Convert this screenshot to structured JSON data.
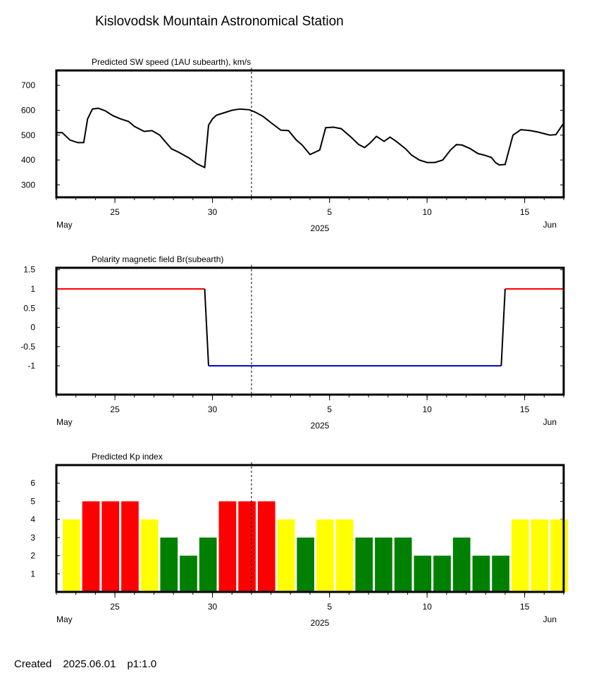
{
  "page": {
    "title": "Kislovodsk Mountain Astronomical Station",
    "created_label": "Created",
    "created_date": "2025.06.01",
    "page_code": "p1:1.0"
  },
  "shared_axis": {
    "start_date": "2025-05-22",
    "end_date": "2025-06-17",
    "tick_labels": [
      "25",
      "30",
      "5",
      "10",
      "15"
    ],
    "tick_dates": [
      "2025-05-25",
      "2025-05-30",
      "2025-06-05",
      "2025-06-10",
      "2025-06-15"
    ],
    "month_left": "May",
    "year": "2025",
    "month_right": "Jun",
    "current_date_marker": "2025-06-01"
  },
  "chart_data": [
    {
      "type": "line",
      "title": "Predicted SW speed (1AU subearth), km/s",
      "ylim": [
        250,
        760
      ],
      "yticks": [
        "700",
        "600",
        "500",
        "400",
        "300"
      ],
      "ytick_values": [
        700,
        600,
        500,
        400,
        300
      ],
      "color": "#000000",
      "x": [
        "2025-05-22",
        "2025-05-22.3",
        "2025-05-22.7",
        "2025-05-23.1",
        "2025-05-23.4",
        "2025-05-23.6",
        "2025-05-23.85",
        "2025-05-24.15",
        "2025-05-24.5",
        "2025-05-24.9",
        "2025-05-25.3",
        "2025-05-25.7",
        "2025-05-26.0",
        "2025-05-26.5",
        "2025-05-26.9",
        "2025-05-27.3",
        "2025-05-27.6",
        "2025-05-27.9",
        "2025-05-28.3",
        "2025-05-28.8",
        "2025-05-29.2",
        "2025-05-29.6",
        "2025-05-29.8",
        "2025-05-30.0",
        "2025-05-30.2",
        "2025-05-30.6",
        "2025-05-31.0",
        "2025-05-31.4",
        "2025-05-31.9",
        "2025-06-01.2",
        "2025-06-01.6",
        "2025-06-02.0",
        "2025-06-02.5",
        "2025-06-02.9",
        "2025-06-03.3",
        "2025-06-03.6",
        "2025-06-04.0",
        "2025-06-04.5",
        "2025-06-04.8",
        "2025-06-05.2",
        "2025-06-05.6",
        "2025-06-06.1",
        "2025-06-06.5",
        "2025-06-06.8",
        "2025-06-07.1",
        "2025-06-07.4",
        "2025-06-07.8",
        "2025-06-08.1",
        "2025-06-08.4",
        "2025-06-08.9",
        "2025-06-09.2",
        "2025-06-09.6",
        "2025-06-10.0",
        "2025-06-10.4",
        "2025-06-10.8",
        "2025-06-11.2",
        "2025-06-11.5",
        "2025-06-11.8",
        "2025-06-12.2",
        "2025-06-12.6",
        "2025-06-13.0",
        "2025-06-13.3",
        "2025-06-13.5",
        "2025-06-13.7",
        "2025-06-14.0",
        "2025-06-14.4",
        "2025-06-14.8",
        "2025-06-15.3",
        "2025-06-15.7",
        "2025-06-16.1",
        "2025-06-16.3",
        "2025-06-16.6",
        "2025-06-17.0"
      ],
      "values": [
        510,
        510,
        480,
        470,
        470,
        565,
        605,
        608,
        598,
        578,
        565,
        555,
        535,
        515,
        518,
        500,
        472,
        445,
        430,
        408,
        385,
        370,
        540,
        565,
        580,
        590,
        600,
        605,
        602,
        592,
        575,
        550,
        520,
        518,
        480,
        460,
        422,
        440,
        530,
        532,
        526,
        492,
        462,
        450,
        470,
        495,
        475,
        492,
        476,
        445,
        420,
        400,
        390,
        390,
        400,
        440,
        462,
        460,
        446,
        426,
        418,
        410,
        390,
        380,
        382,
        500,
        522,
        518,
        512,
        504,
        500,
        502,
        548
      ]
    },
    {
      "type": "line",
      "title": "Polarity magnetic field  Br(subearth)",
      "ylim": [
        -1.75,
        1.55
      ],
      "yticks": [
        "1.5",
        "1",
        "0.5",
        "0",
        "-0.5",
        "-1"
      ],
      "ytick_values": [
        1.5,
        1,
        0.5,
        0,
        -0.5,
        -1
      ],
      "series": [
        {
          "color": "#ff0000",
          "x": [
            "2025-05-22",
            "2025-05-29.6"
          ],
          "values": [
            1,
            1
          ]
        },
        {
          "color": "#000000",
          "x": [
            "2025-05-29.6",
            "2025-05-29.8"
          ],
          "values": [
            1,
            -1
          ]
        },
        {
          "color": "#0000cc",
          "x": [
            "2025-05-29.8",
            "2025-06-13.8"
          ],
          "values": [
            -1,
            -1
          ]
        },
        {
          "color": "#000000",
          "x": [
            "2025-06-13.8",
            "2025-06-14.0"
          ],
          "values": [
            -1,
            1
          ]
        },
        {
          "color": "#ff0000",
          "x": [
            "2025-06-14.0",
            "2025-06-17.0"
          ],
          "values": [
            1,
            1
          ]
        }
      ]
    },
    {
      "type": "bar",
      "title": "Predicted Kp index",
      "ylim": [
        0,
        7
      ],
      "yticks": [
        "6",
        "5",
        "4",
        "3",
        "2",
        "1"
      ],
      "ytick_values": [
        6,
        5,
        4,
        3,
        2,
        1
      ],
      "categories": [
        "2025-05-22",
        "2025-05-23",
        "2025-05-24",
        "2025-05-25",
        "2025-05-26",
        "2025-05-27",
        "2025-05-28",
        "2025-05-29",
        "2025-05-30",
        "2025-05-31",
        "2025-06-01",
        "2025-06-02",
        "2025-06-03",
        "2025-06-04",
        "2025-06-05",
        "2025-06-06",
        "2025-06-07",
        "2025-06-08",
        "2025-06-09",
        "2025-06-10",
        "2025-06-11",
        "2025-06-12",
        "2025-06-13",
        "2025-06-14",
        "2025-06-15",
        "2025-06-16"
      ],
      "values": [
        4,
        5,
        5,
        5,
        4,
        3,
        2,
        3,
        5,
        5,
        5,
        4,
        3,
        4,
        4,
        3,
        3,
        3,
        2,
        2,
        3,
        2,
        2,
        4,
        4,
        4
      ],
      "colors": {
        "low": "#008000",
        "moderate": "#ffff00",
        "high": "#ff0000"
      }
    }
  ]
}
